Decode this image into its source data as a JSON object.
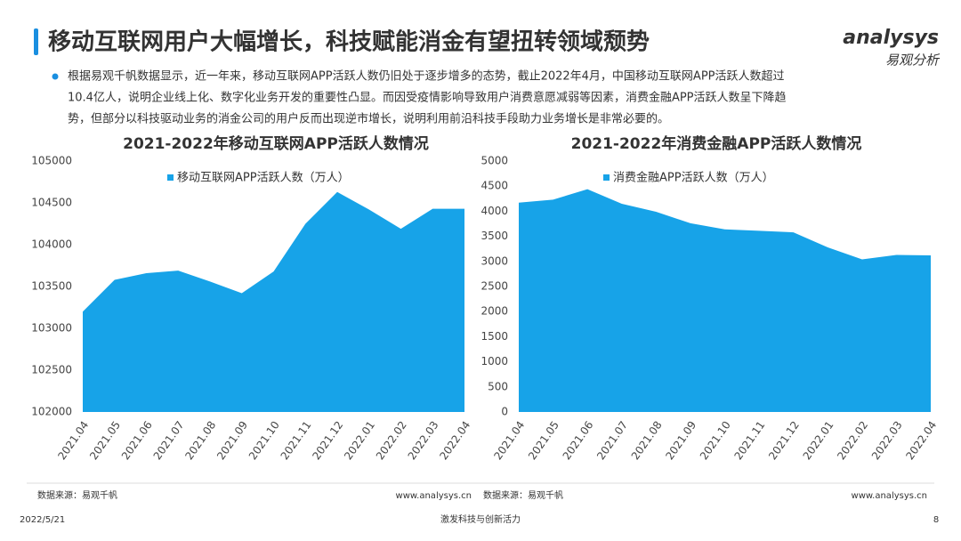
{
  "title": "移动互联网用户大幅增长，科技赋能消金有望扭转领域颓势",
  "logo": {
    "brand": "analysys",
    "cn": "易观分析"
  },
  "bullet": {
    "lines": [
      "根据易观千帆数据显示，近一年来，移动互联网APP活跃人数仍旧处于逐步增多的态势，截止2022年4月，中国移动互联网APP活跃人数超过",
      "10.4亿人，说明企业线上化、数字化业务开发的重要性凸显。而因受疫情影响导致用户消费意愿减弱等因素，消费金融APP活跃人数呈下降趋",
      "势，但部分以科技驱动业务的消金公司的用户反而出现逆市增长，说明利用前沿科技手段助力业务增长是非常必要的。"
    ]
  },
  "chart_data": [
    {
      "type": "area",
      "title": "2021-2022年移动互联网APP活跃人数情况",
      "categories": [
        "2021.04",
        "2021.05",
        "2021.06",
        "2021.07",
        "2021.08",
        "2021.09",
        "2021.10",
        "2021.11",
        "2021.12",
        "2022.01",
        "2022.02",
        "2022.03",
        "2022.04"
      ],
      "series": [
        {
          "name": "移动互联网APP活跃人数（万人）",
          "color": "#17a3e8",
          "values": [
            103200,
            103580,
            103660,
            103690,
            103560,
            103420,
            103680,
            104250,
            104630,
            104420,
            104190,
            104430,
            104430
          ]
        }
      ],
      "ylim": [
        102000,
        105000
      ],
      "yticks": [
        102000,
        102500,
        103000,
        103500,
        104000,
        104500,
        105000
      ],
      "grid": false
    },
    {
      "type": "area",
      "title": "2021-2022年消费金融APP活跃人数情况",
      "categories": [
        "2021.04",
        "2021.05",
        "2021.06",
        "2021.07",
        "2021.08",
        "2021.09",
        "2021.10",
        "2021.11",
        "2021.12",
        "2022.01",
        "2022.02",
        "2022.03",
        "2022.04"
      ],
      "series": [
        {
          "name": "消费金融APP活跃人数（万人）",
          "color": "#17a3e8",
          "values": [
            4170,
            4230,
            4440,
            4150,
            3990,
            3760,
            3640,
            3610,
            3580,
            3280,
            3040,
            3130,
            3120
          ]
        }
      ],
      "ylim": [
        0,
        5000
      ],
      "yticks": [
        0,
        500,
        1000,
        1500,
        2000,
        2500,
        3000,
        3500,
        4000,
        4500,
        5000
      ],
      "grid": false
    }
  ],
  "footer": {
    "source_left": "数据来源：易观千帆",
    "url_left": "www.analysys.cn",
    "source_right": "数据来源：易观千帆",
    "url_right": "www.analysys.cn",
    "date": "2022/5/21",
    "slogan": "激发科技与创新活力",
    "page": "8"
  }
}
